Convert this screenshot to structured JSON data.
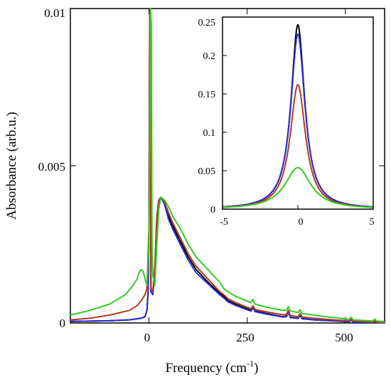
{
  "chart_data": [
    {
      "type": "line",
      "xlabel": "Frequency (cm",
      "xlabel_unit_superscript": "-1",
      "xlabel_close": ")",
      "ylabel": "Absorbance (arb.u.)",
      "xlim": [
        -200,
        600
      ],
      "ylim": [
        0,
        0.01
      ],
      "x_ticks": [
        0,
        250,
        500
      ],
      "x_tick_labels": [
        "0",
        "250",
        "500"
      ],
      "y_ticks": [
        0,
        0.005,
        0.01
      ],
      "y_tick_labels": [
        "0",
        "0.005",
        "0.01"
      ],
      "grid": false,
      "series": [
        {
          "color": "#000000",
          "x": [
            -200,
            -100,
            -50,
            -20,
            -10,
            -5,
            -2,
            0,
            1,
            2,
            3,
            5,
            10,
            15,
            20,
            25,
            30,
            35,
            40,
            50,
            60,
            80,
            100,
            120,
            150,
            180,
            190,
            195,
            200,
            220,
            250,
            260,
            265,
            270,
            300,
            340,
            350,
            355,
            360,
            380,
            385,
            390,
            420,
            450,
            480,
            510,
            515,
            520,
            550,
            570,
            575,
            580,
            600
          ],
          "y": [
            5e-05,
            7e-05,
            0.0001,
            0.00015,
            0.0002,
            0.0004,
            0.001,
            0.003,
            0.006,
            0.01,
            0.01,
            0.001,
            0.0009,
            0.0017,
            0.0033,
            0.0039,
            0.004,
            0.00393,
            0.0038,
            0.0034,
            0.0031,
            0.0026,
            0.0021,
            0.0017,
            0.0013,
            0.00095,
            0.00085,
            0.0008,
            0.00072,
            0.0006,
            0.00045,
            0.0004,
            0.0005,
            0.00038,
            0.0003,
            0.0002,
            0.00022,
            0.00035,
            0.00018,
            0.00015,
            0.00025,
            0.00014,
            0.0001,
            8e-05,
            6e-05,
            4e-05,
            0.0001,
            3e-05,
            2e-05,
            2e-05,
            6e-05,
            2e-05,
            1e-05
          ]
        },
        {
          "color": "#2b2bd6",
          "x": [
            -200,
            -100,
            -50,
            -20,
            -10,
            -5,
            -2,
            0,
            1,
            2,
            3,
            5,
            10,
            15,
            20,
            25,
            30,
            35,
            40,
            50,
            60,
            80,
            100,
            120,
            150,
            180,
            190,
            195,
            200,
            220,
            250,
            260,
            265,
            270,
            300,
            340,
            350,
            355,
            360,
            380,
            385,
            390,
            420,
            450,
            480,
            510,
            515,
            520,
            550,
            570,
            575,
            580,
            600
          ],
          "y": [
            5e-05,
            7e-05,
            0.0001,
            0.00015,
            0.0002,
            0.0004,
            0.001,
            0.003,
            0.006,
            0.01,
            0.01,
            0.001,
            0.0009,
            0.0017,
            0.0033,
            0.0039,
            0.00398,
            0.0039,
            0.00375,
            0.0033,
            0.003,
            0.0025,
            0.002,
            0.0016,
            0.00125,
            0.0009,
            0.0008,
            0.00075,
            0.00068,
            0.00056,
            0.00042,
            0.00038,
            0.00048,
            0.00036,
            0.00028,
            0.00019,
            0.0002,
            0.00033,
            0.00017,
            0.00014,
            0.00024,
            0.00013,
            0.0001,
            8e-05,
            6e-05,
            4e-05,
            0.0001,
            3e-05,
            2e-05,
            2e-05,
            6e-05,
            2e-05,
            1e-05
          ]
        },
        {
          "color": "#b03a20",
          "x": [
            -200,
            -150,
            -100,
            -50,
            -30,
            -20,
            -10,
            -5,
            0,
            2,
            3,
            5,
            10,
            15,
            20,
            25,
            30,
            35,
            40,
            50,
            60,
            80,
            100,
            120,
            150,
            180,
            190,
            195,
            200,
            220,
            250,
            260,
            265,
            270,
            300,
            340,
            350,
            355,
            360,
            380,
            385,
            390,
            420,
            450,
            480,
            510,
            515,
            520,
            550,
            570,
            575,
            580,
            600
          ],
          "y": [
            0.0001,
            0.00015,
            0.00025,
            0.0004,
            0.00055,
            0.0007,
            0.0009,
            0.0011,
            0.003,
            0.01,
            0.01,
            0.0011,
            0.001,
            0.0018,
            0.0034,
            0.0039,
            0.004,
            0.00395,
            0.00385,
            0.0035,
            0.0032,
            0.0027,
            0.0022,
            0.0018,
            0.0014,
            0.001,
            0.0009,
            0.00085,
            0.00078,
            0.00065,
            0.0005,
            0.00045,
            0.00055,
            0.00043,
            0.00035,
            0.00026,
            0.00027,
            0.0004,
            0.00024,
            0.0002,
            0.0003,
            0.00019,
            0.00015,
            0.00012,
            9e-05,
            7e-05,
            0.00013,
            6e-05,
            4e-05,
            3e-05,
            8e-05,
            3e-05,
            2e-05
          ]
        },
        {
          "color": "#33cc22",
          "x": [
            -200,
            -150,
            -100,
            -60,
            -40,
            -30,
            -25,
            -20,
            -15,
            -10,
            -5,
            0,
            2,
            4,
            6,
            8,
            10,
            15,
            20,
            25,
            30,
            35,
            40,
            50,
            60,
            80,
            100,
            120,
            150,
            180,
            190,
            195,
            200,
            220,
            250,
            260,
            265,
            270,
            300,
            340,
            350,
            355,
            360,
            380,
            385,
            390,
            420,
            450,
            480,
            510,
            515,
            520,
            550,
            570,
            575,
            580,
            600
          ],
          "y": [
            0.00025,
            0.0004,
            0.0006,
            0.0009,
            0.0012,
            0.0014,
            0.0016,
            0.0017,
            0.00165,
            0.0014,
            0.0012,
            0.0025,
            0.006,
            0.01,
            0.0095,
            0.0025,
            0.0015,
            0.0012,
            0.0025,
            0.0036,
            0.004,
            0.00395,
            0.0039,
            0.0037,
            0.0034,
            0.003,
            0.0025,
            0.0021,
            0.0017,
            0.0013,
            0.0011,
            0.00105,
            0.001,
            0.00085,
            0.0007,
            0.00065,
            0.00075,
            0.0006,
            0.0005,
            0.0004,
            0.0004,
            0.00052,
            0.00038,
            0.00033,
            0.00042,
            0.0003,
            0.00025,
            0.0002,
            0.00016,
            0.00012,
            0.00018,
            0.0001,
            8e-05,
            6e-05,
            0.00012,
            6e-05,
            4e-05
          ]
        }
      ]
    },
    {
      "type": "line",
      "xlim": [
        -5,
        5
      ],
      "ylim": [
        0,
        0.25
      ],
      "x_ticks": [
        -5,
        0,
        5
      ],
      "x_tick_labels": [
        "-5",
        "0",
        "5"
      ],
      "y_ticks": [
        0,
        0.05,
        0.1,
        0.15,
        0.2,
        0.25
      ],
      "y_tick_labels": [
        "0",
        "0.05",
        "0.1",
        "0.15",
        "0.2",
        "0.25"
      ],
      "grid": false,
      "series": [
        {
          "color": "#000000",
          "peak": 0.24,
          "width": 0.55
        },
        {
          "color": "#2b2bd6",
          "peak": 0.228,
          "width": 0.57
        },
        {
          "color": "#b03a20",
          "peak": 0.162,
          "width": 0.62
        },
        {
          "color": "#33cc22",
          "peak": 0.054,
          "width": 1.05
        }
      ]
    }
  ]
}
